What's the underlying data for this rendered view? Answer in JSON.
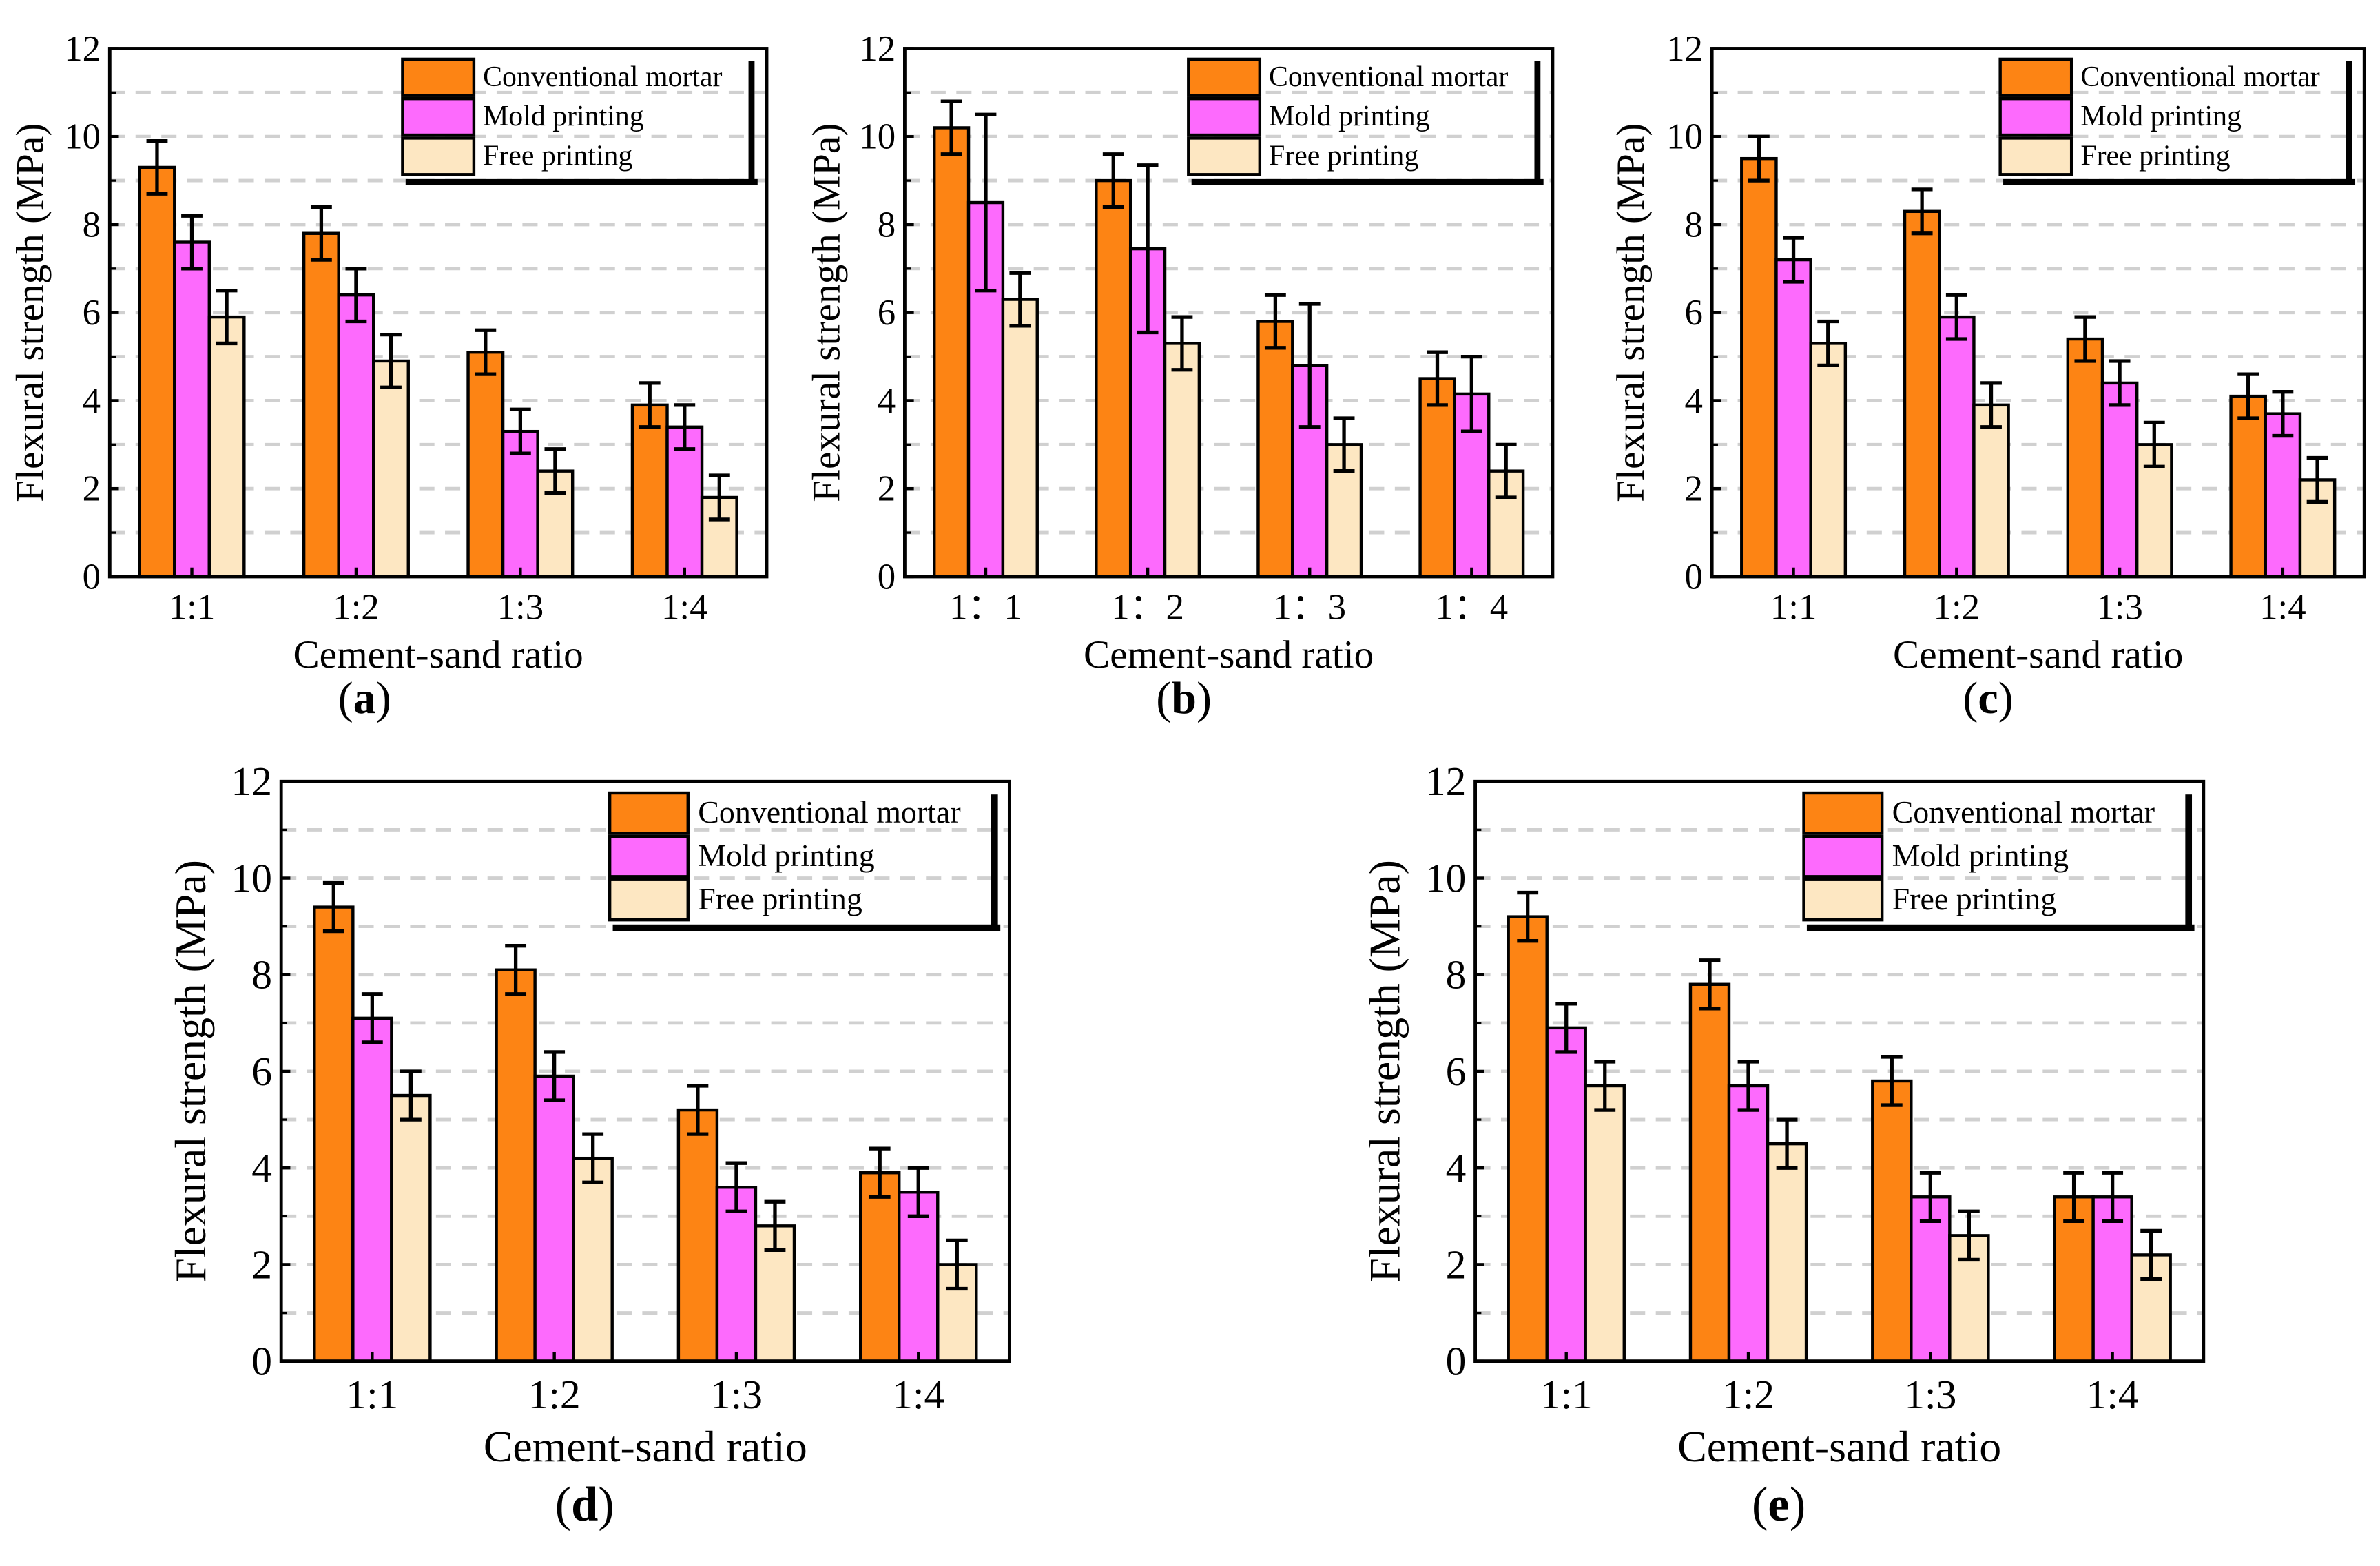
{
  "chart_data": {
    "type": "bar",
    "shared": {
      "categories": [
        "1:1",
        "1:2",
        "1:3",
        "1:4"
      ],
      "xlabel": "Cement-sand ratio",
      "ylabel": "Flexural strength (MPa)",
      "ylim": [
        0,
        12
      ],
      "yticks": [
        0,
        2,
        4,
        6,
        8,
        10,
        12
      ],
      "grid": "dashed horizontal at every 1 MPa",
      "legend_placement": "top-right",
      "series_names": [
        "Conventional mortar",
        "Mold printing",
        "Free printing"
      ],
      "colors": [
        "#fd8414",
        "#fd6afd",
        "#fde7c2"
      ]
    },
    "panels": [
      {
        "label": "a",
        "categories": [
          "1:1",
          "1:2",
          "1:3",
          "1:4"
        ],
        "series": [
          {
            "name": "Conventional mortar",
            "values": [
              9.3,
              7.8,
              5.1,
              3.9
            ],
            "errors": [
              0.6,
              0.6,
              0.5,
              0.5
            ]
          },
          {
            "name": "Mold printing",
            "values": [
              7.6,
              6.4,
              3.3,
              3.4
            ],
            "errors": [
              0.6,
              0.6,
              0.5,
              0.5
            ]
          },
          {
            "name": "Free printing",
            "values": [
              5.9,
              4.9,
              2.4,
              1.8
            ],
            "errors": [
              0.6,
              0.6,
              0.5,
              0.5
            ]
          }
        ]
      },
      {
        "label": "b",
        "categories": [
          "1：1",
          "1：2",
          "1：3",
          "1：4"
        ],
        "series": [
          {
            "name": "Conventional mortar",
            "values": [
              10.2,
              9.0,
              5.8,
              4.5
            ],
            "errors": [
              0.6,
              0.6,
              0.6,
              0.6
            ]
          },
          {
            "name": "Mold printing",
            "values": [
              8.5,
              7.45,
              4.8,
              4.15
            ],
            "errors": [
              2.0,
              1.9,
              1.4,
              0.85
            ]
          },
          {
            "name": "Free printing",
            "values": [
              6.3,
              5.3,
              3.0,
              2.4
            ],
            "errors": [
              0.6,
              0.6,
              0.6,
              0.6
            ]
          }
        ]
      },
      {
        "label": "c",
        "categories": [
          "1:1",
          "1:2",
          "1:3",
          "1:4"
        ],
        "series": [
          {
            "name": "Conventional mortar",
            "values": [
              9.5,
              8.3,
              5.4,
              4.1
            ],
            "errors": [
              0.5,
              0.5,
              0.5,
              0.5
            ]
          },
          {
            "name": "Mold printing",
            "values": [
              7.2,
              5.9,
              4.4,
              3.7
            ],
            "errors": [
              0.5,
              0.5,
              0.5,
              0.5
            ]
          },
          {
            "name": "Free printing",
            "values": [
              5.3,
              3.9,
              3.0,
              2.2
            ],
            "errors": [
              0.5,
              0.5,
              0.5,
              0.5
            ]
          }
        ]
      },
      {
        "label": "d",
        "categories": [
          "1:1",
          "1:2",
          "1:3",
          "1:4"
        ],
        "series": [
          {
            "name": "Conventional mortar",
            "values": [
              9.4,
              8.1,
              5.2,
              3.9
            ],
            "errors": [
              0.5,
              0.5,
              0.5,
              0.5
            ]
          },
          {
            "name": "Mold printing",
            "values": [
              7.1,
              5.9,
              3.6,
              3.5
            ],
            "errors": [
              0.5,
              0.5,
              0.5,
              0.5
            ]
          },
          {
            "name": "Free printing",
            "values": [
              5.5,
              4.2,
              2.8,
              2.0
            ],
            "errors": [
              0.5,
              0.5,
              0.5,
              0.5
            ]
          }
        ]
      },
      {
        "label": "e",
        "categories": [
          "1:1",
          "1:2",
          "1:3",
          "1:4"
        ],
        "series": [
          {
            "name": "Conventional mortar",
            "values": [
              9.2,
              7.8,
              5.8,
              3.4
            ],
            "errors": [
              0.5,
              0.5,
              0.5,
              0.5
            ]
          },
          {
            "name": "Mold printing",
            "values": [
              6.9,
              5.7,
              3.4,
              3.4
            ],
            "errors": [
              0.5,
              0.5,
              0.5,
              0.5
            ]
          },
          {
            "name": "Free printing",
            "values": [
              5.7,
              4.5,
              2.6,
              2.2
            ],
            "errors": [
              0.5,
              0.5,
              0.5,
              0.5
            ]
          }
        ]
      }
    ]
  }
}
